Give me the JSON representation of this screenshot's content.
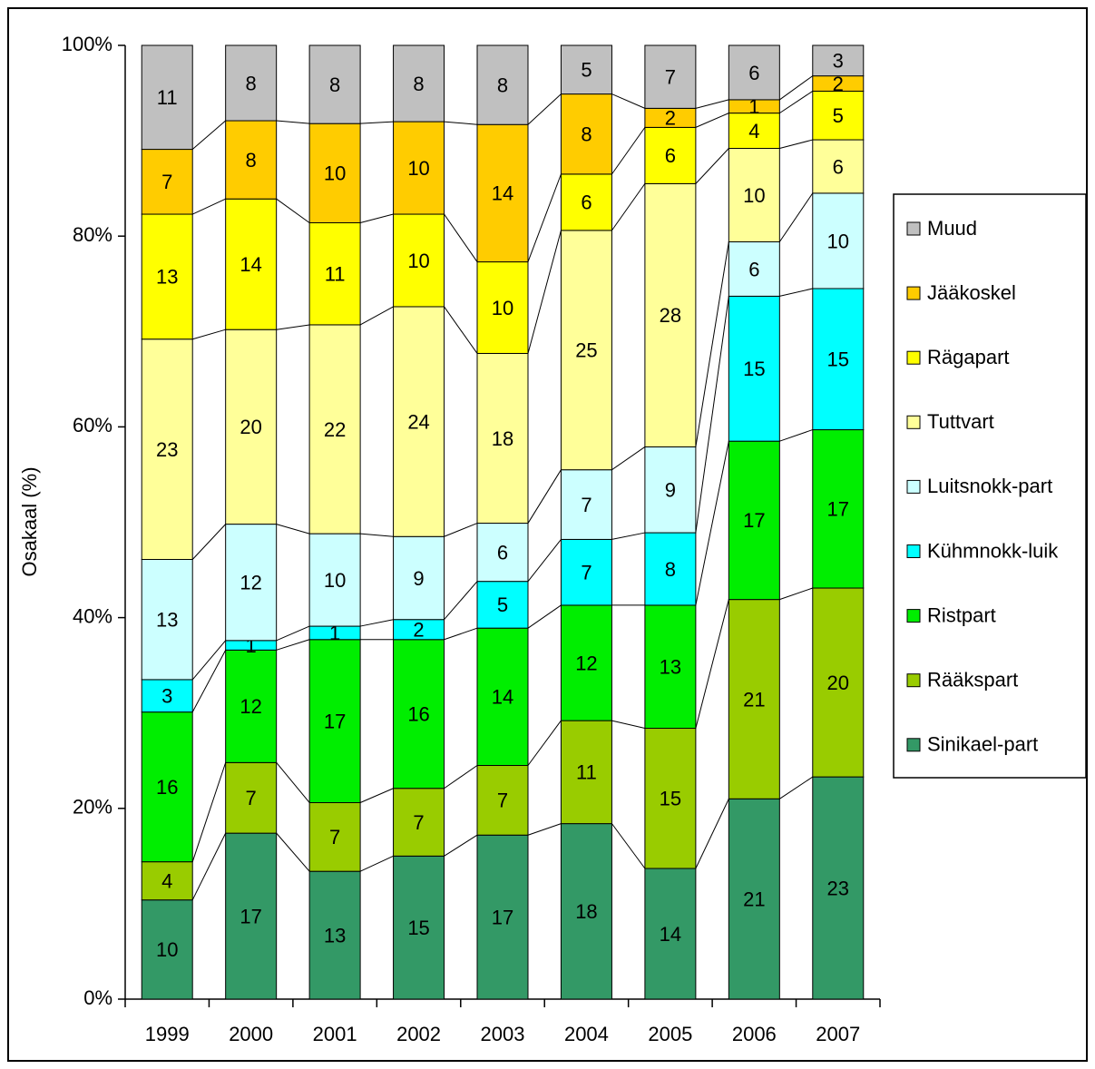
{
  "chart_data": {
    "type": "stacked_bar",
    "y_label": "Osakaal (%)",
    "categories": [
      "1999",
      "2000",
      "2001",
      "2002",
      "2003",
      "2004",
      "2005",
      "2006",
      "2007"
    ],
    "ylim": [
      0,
      100
    ],
    "yticks": [
      {
        "value": 0,
        "label": "0%"
      },
      {
        "value": 20,
        "label": "20%"
      },
      {
        "value": 40,
        "label": "40%"
      },
      {
        "value": 60,
        "label": "60%"
      },
      {
        "value": 80,
        "label": "80%"
      },
      {
        "value": 100,
        "label": "100%"
      }
    ],
    "series": [
      {
        "name": "Sinikael-part",
        "color": "#339966",
        "values": [
          10.4,
          17.4,
          13.4,
          15.0,
          17.2,
          18.4,
          13.7,
          21.0,
          23.3
        ],
        "value_labels": [
          "10",
          "17",
          "13",
          "15",
          "17",
          "18",
          "14",
          "21",
          "23"
        ]
      },
      {
        "name": "Rääkspart",
        "color": "#99cc00",
        "values": [
          4.0,
          7.4,
          7.2,
          7.1,
          7.3,
          10.8,
          14.7,
          20.9,
          19.8
        ],
        "value_labels": [
          "4",
          "7",
          "7",
          "7",
          "7",
          "11",
          "15",
          "21",
          "20"
        ]
      },
      {
        "name": "Ristpart",
        "color": "#00ee00",
        "values": [
          15.7,
          11.8,
          17.1,
          15.6,
          14.4,
          12.1,
          12.9,
          16.6,
          16.6
        ],
        "value_labels": [
          "16",
          "12",
          "17",
          "16",
          "14",
          "12",
          "13",
          "17",
          "17"
        ]
      },
      {
        "name": "Kühmnokk-luik",
        "color": "#00ffff",
        "values": [
          3.4,
          1.0,
          1.4,
          2.1,
          4.9,
          6.9,
          7.6,
          15.2,
          14.8
        ],
        "value_labels": [
          "3",
          "1",
          "1",
          "2",
          "5",
          "7",
          "8",
          "15",
          "15"
        ]
      },
      {
        "name": "Luitsnokk-part",
        "color": "#ccffff",
        "values": [
          12.6,
          12.2,
          9.7,
          8.7,
          6.1,
          7.3,
          9.0,
          5.7,
          10.0
        ],
        "value_labels": [
          "13",
          "12",
          "10",
          "9",
          "6",
          "7",
          "9",
          "6",
          "10"
        ]
      },
      {
        "name": "Tuttvart",
        "color": "#ffff99",
        "values": [
          23.1,
          20.4,
          21.9,
          24.1,
          17.8,
          25.1,
          27.6,
          9.8,
          5.6
        ],
        "value_labels": [
          "23",
          "20",
          "22",
          "24",
          "18",
          "25",
          "28",
          "10",
          "6"
        ]
      },
      {
        "name": "Rägapart",
        "color": "#ffff00",
        "values": [
          13.1,
          13.7,
          10.7,
          9.7,
          9.6,
          5.9,
          5.9,
          3.7,
          5.1
        ],
        "value_labels": [
          "13",
          "14",
          "11",
          "10",
          "10",
          "6",
          "6",
          "4",
          "5"
        ]
      },
      {
        "name": "Jääkoskel",
        "color": "#ffcc00",
        "values": [
          6.8,
          8.2,
          10.4,
          9.7,
          14.4,
          8.4,
          2.0,
          1.4,
          1.6
        ],
        "value_labels": [
          "7",
          "8",
          "10",
          "10",
          "14",
          "8",
          "2",
          "1",
          "2"
        ]
      },
      {
        "name": "Muud",
        "color": "#c0c0c0",
        "values": [
          10.9,
          7.9,
          8.2,
          8.0,
          8.3,
          5.1,
          6.6,
          5.7,
          3.2
        ],
        "value_labels": [
          "11",
          "8",
          "8",
          "8",
          "8",
          "5",
          "7",
          "6",
          "3"
        ]
      }
    ],
    "legend": "right"
  }
}
